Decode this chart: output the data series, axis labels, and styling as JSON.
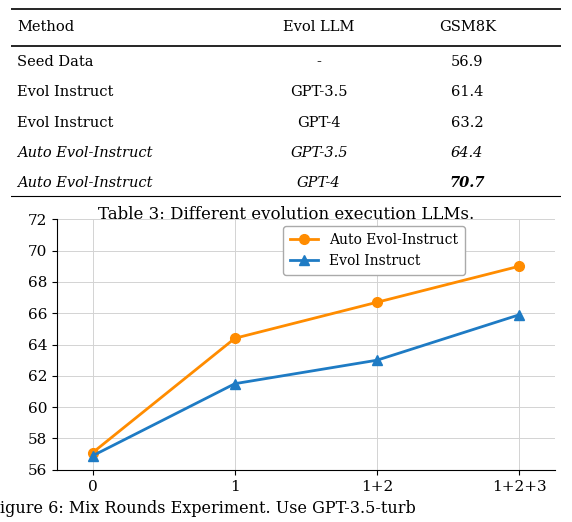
{
  "table": {
    "headers": [
      "Method",
      "Evol LLM",
      "GSM8K"
    ],
    "rows": [
      [
        "Seed Data",
        "-",
        "56.9"
      ],
      [
        "Evol Instruct",
        "GPT-3.5",
        "61.4"
      ],
      [
        "Evol Instruct",
        "GPT-4",
        "63.2"
      ],
      [
        "Auto Evol-Instruct",
        "GPT-3.5",
        "64.4"
      ],
      [
        "Auto Evol-Instruct",
        "GPT-4",
        "70.7"
      ]
    ],
    "italic_rows": [
      3,
      4
    ],
    "bold_cells": [
      [
        4,
        2
      ]
    ]
  },
  "table_caption": "Table 3: Different evolution execution LLMs.",
  "chart": {
    "x_labels": [
      "0",
      "1",
      "1+2",
      "1+2+3"
    ],
    "x_values": [
      0,
      1,
      2,
      3
    ],
    "series": [
      {
        "label": "Auto Evol-Instruct",
        "values": [
          57.1,
          64.4,
          66.7,
          69.0
        ],
        "color": "#FF8C00",
        "marker": "o",
        "linewidth": 2.0
      },
      {
        "label": "Evol Instruct",
        "values": [
          56.9,
          61.5,
          63.0,
          65.9
        ],
        "color": "#1E7BC4",
        "marker": "^",
        "linewidth": 2.0
      }
    ],
    "ylim": [
      56,
      72
    ],
    "yticks": [
      56,
      58,
      60,
      62,
      64,
      66,
      68,
      70,
      72
    ]
  },
  "figure_caption": "igure 6: Mix Rounds Experiment. Use GPT-3.5-turb"
}
